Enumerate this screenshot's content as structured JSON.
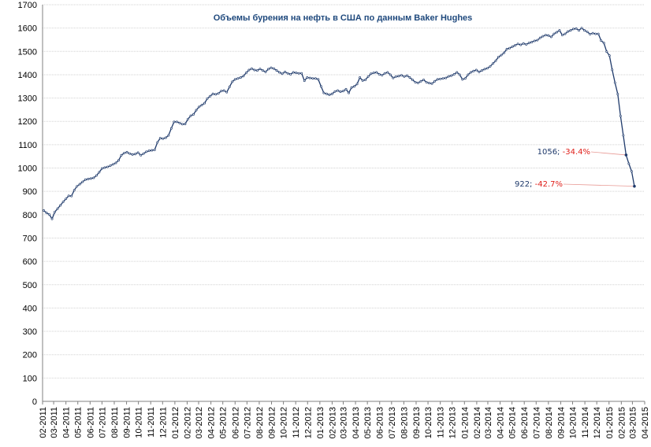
{
  "chart_data": {
    "type": "line",
    "title": "Объемы бурения на нефть в США по данным Baker Hughes",
    "xlabel": "",
    "ylabel": "",
    "ylim": [
      0,
      1700
    ],
    "y_ticks": [
      0,
      100,
      200,
      300,
      400,
      500,
      600,
      700,
      800,
      900,
      1000,
      1100,
      1200,
      1300,
      1400,
      1500,
      1600,
      1700
    ],
    "x_range": [
      "2011-02-01",
      "2015-04-01"
    ],
    "x_ticks": [
      "02-2011",
      "03-2011",
      "04-2011",
      "05-2011",
      "06-2011",
      "07-2011",
      "08-2011",
      "09-2011",
      "10-2011",
      "11-2011",
      "12-2011",
      "01-2012",
      "02-2012",
      "03-2012",
      "04-2012",
      "05-2012",
      "06-2012",
      "07-2012",
      "08-2012",
      "09-2012",
      "10-2012",
      "11-2012",
      "12-2012",
      "01-2013",
      "02-2013",
      "03-2013",
      "04-2013",
      "05-2013",
      "06-2013",
      "07-2013",
      "08-2013",
      "09-2013",
      "10-2013",
      "11-2013",
      "12-2013",
      "01-2014",
      "02-2014",
      "03-2014",
      "04-2014",
      "05-2014",
      "06-2014",
      "07-2014",
      "08-2014",
      "09-2014",
      "10-2014",
      "11-2014",
      "12-2014",
      "01-2015",
      "02-2015",
      "03-2015",
      "04-2015"
    ],
    "grid": "horizontal",
    "legend": "none",
    "series_color": "#1f3a6b",
    "series": [
      {
        "name": "",
        "points": [
          [
            "2011-02-04",
            818
          ],
          [
            "2011-02-11",
            808
          ],
          [
            "2011-02-18",
            801
          ],
          [
            "2011-02-25",
            782
          ],
          [
            "2011-03-04",
            812
          ],
          [
            "2011-03-11",
            826
          ],
          [
            "2011-03-18",
            840
          ],
          [
            "2011-03-25",
            855
          ],
          [
            "2011-04-01",
            868
          ],
          [
            "2011-04-08",
            881
          ],
          [
            "2011-04-15",
            880
          ],
          [
            "2011-04-22",
            905
          ],
          [
            "2011-04-29",
            922
          ],
          [
            "2011-05-06",
            931
          ],
          [
            "2011-05-13",
            941
          ],
          [
            "2011-05-20",
            950
          ],
          [
            "2011-05-27",
            953
          ],
          [
            "2011-06-03",
            955
          ],
          [
            "2011-06-10",
            958
          ],
          [
            "2011-06-17",
            968
          ],
          [
            "2011-06-24",
            982
          ],
          [
            "2011-07-01",
            998
          ],
          [
            "2011-07-08",
            1002
          ],
          [
            "2011-07-15",
            1005
          ],
          [
            "2011-07-22",
            1010
          ],
          [
            "2011-07-29",
            1016
          ],
          [
            "2011-08-05",
            1022
          ],
          [
            "2011-08-12",
            1033
          ],
          [
            "2011-08-19",
            1055
          ],
          [
            "2011-08-26",
            1064
          ],
          [
            "2011-09-02",
            1068
          ],
          [
            "2011-09-09",
            1062
          ],
          [
            "2011-09-16",
            1058
          ],
          [
            "2011-09-23",
            1060
          ],
          [
            "2011-09-30",
            1066
          ],
          [
            "2011-10-07",
            1055
          ],
          [
            "2011-10-14",
            1062
          ],
          [
            "2011-10-21",
            1070
          ],
          [
            "2011-10-28",
            1074
          ],
          [
            "2011-11-04",
            1076
          ],
          [
            "2011-11-11",
            1078
          ],
          [
            "2011-11-18",
            1110
          ],
          [
            "2011-11-25",
            1128
          ],
          [
            "2011-12-02",
            1126
          ],
          [
            "2011-12-09",
            1130
          ],
          [
            "2011-12-16",
            1140
          ],
          [
            "2011-12-23",
            1170
          ],
          [
            "2011-12-30",
            1198
          ],
          [
            "2012-01-06",
            1198
          ],
          [
            "2012-01-13",
            1193
          ],
          [
            "2012-01-20",
            1188
          ],
          [
            "2012-01-27",
            1189
          ],
          [
            "2012-02-03",
            1210
          ],
          [
            "2012-02-10",
            1224
          ],
          [
            "2012-02-17",
            1230
          ],
          [
            "2012-02-24",
            1248
          ],
          [
            "2012-03-02",
            1262
          ],
          [
            "2012-03-09",
            1270
          ],
          [
            "2012-03-16",
            1278
          ],
          [
            "2012-03-23",
            1298
          ],
          [
            "2012-03-30",
            1308
          ],
          [
            "2012-04-06",
            1318
          ],
          [
            "2012-04-13",
            1316
          ],
          [
            "2012-04-20",
            1320
          ],
          [
            "2012-04-27",
            1330
          ],
          [
            "2012-05-04",
            1332
          ],
          [
            "2012-05-11",
            1325
          ],
          [
            "2012-05-18",
            1348
          ],
          [
            "2012-05-25",
            1370
          ],
          [
            "2012-06-01",
            1380
          ],
          [
            "2012-06-08",
            1384
          ],
          [
            "2012-06-15",
            1388
          ],
          [
            "2012-06-22",
            1394
          ],
          [
            "2012-06-29",
            1408
          ],
          [
            "2012-07-06",
            1420
          ],
          [
            "2012-07-13",
            1426
          ],
          [
            "2012-07-20",
            1420
          ],
          [
            "2012-07-27",
            1418
          ],
          [
            "2012-08-03",
            1425
          ],
          [
            "2012-08-10",
            1418
          ],
          [
            "2012-08-17",
            1412
          ],
          [
            "2012-08-24",
            1424
          ],
          [
            "2012-08-31",
            1430
          ],
          [
            "2012-09-07",
            1426
          ],
          [
            "2012-09-14",
            1418
          ],
          [
            "2012-09-21",
            1410
          ],
          [
            "2012-09-28",
            1404
          ],
          [
            "2012-10-05",
            1412
          ],
          [
            "2012-10-12",
            1406
          ],
          [
            "2012-10-19",
            1402
          ],
          [
            "2012-10-26",
            1410
          ],
          [
            "2012-11-02",
            1408
          ],
          [
            "2012-11-09",
            1406
          ],
          [
            "2012-11-16",
            1406
          ],
          [
            "2012-11-23",
            1374
          ],
          [
            "2012-11-30",
            1388
          ],
          [
            "2012-12-07",
            1386
          ],
          [
            "2012-12-14",
            1384
          ],
          [
            "2012-12-21",
            1384
          ],
          [
            "2012-12-28",
            1380
          ],
          [
            "2013-01-04",
            1350
          ],
          [
            "2013-01-11",
            1322
          ],
          [
            "2013-01-18",
            1318
          ],
          [
            "2013-01-25",
            1314
          ],
          [
            "2013-02-01",
            1318
          ],
          [
            "2013-02-08",
            1328
          ],
          [
            "2013-02-15",
            1332
          ],
          [
            "2013-02-22",
            1327
          ],
          [
            "2013-03-01",
            1330
          ],
          [
            "2013-03-08",
            1338
          ],
          [
            "2013-03-15",
            1322
          ],
          [
            "2013-03-22",
            1345
          ],
          [
            "2013-03-29",
            1350
          ],
          [
            "2013-04-05",
            1360
          ],
          [
            "2013-04-12",
            1388
          ],
          [
            "2013-04-19",
            1375
          ],
          [
            "2013-04-26",
            1378
          ],
          [
            "2013-05-03",
            1392
          ],
          [
            "2013-05-10",
            1404
          ],
          [
            "2013-05-17",
            1408
          ],
          [
            "2013-05-24",
            1410
          ],
          [
            "2013-05-31",
            1402
          ],
          [
            "2013-06-07",
            1398
          ],
          [
            "2013-06-14",
            1406
          ],
          [
            "2013-06-21",
            1410
          ],
          [
            "2013-06-28",
            1400
          ],
          [
            "2013-07-05",
            1386
          ],
          [
            "2013-07-12",
            1392
          ],
          [
            "2013-07-19",
            1394
          ],
          [
            "2013-07-26",
            1398
          ],
          [
            "2013-08-02",
            1392
          ],
          [
            "2013-08-09",
            1396
          ],
          [
            "2013-08-16",
            1388
          ],
          [
            "2013-08-23",
            1378
          ],
          [
            "2013-08-30",
            1368
          ],
          [
            "2013-09-06",
            1365
          ],
          [
            "2013-09-13",
            1372
          ],
          [
            "2013-09-20",
            1378
          ],
          [
            "2013-09-27",
            1368
          ],
          [
            "2013-10-04",
            1364
          ],
          [
            "2013-10-11",
            1362
          ],
          [
            "2013-10-18",
            1372
          ],
          [
            "2013-10-25",
            1380
          ],
          [
            "2013-11-01",
            1382
          ],
          [
            "2013-11-08",
            1384
          ],
          [
            "2013-11-15",
            1386
          ],
          [
            "2013-11-22",
            1393
          ],
          [
            "2013-11-29",
            1396
          ],
          [
            "2013-12-06",
            1402
          ],
          [
            "2013-12-13",
            1410
          ],
          [
            "2013-12-20",
            1400
          ],
          [
            "2013-12-27",
            1380
          ],
          [
            "2014-01-03",
            1384
          ],
          [
            "2014-01-10",
            1400
          ],
          [
            "2014-01-17",
            1410
          ],
          [
            "2014-01-24",
            1416
          ],
          [
            "2014-01-31",
            1420
          ],
          [
            "2014-02-07",
            1412
          ],
          [
            "2014-02-14",
            1418
          ],
          [
            "2014-02-21",
            1424
          ],
          [
            "2014-02-28",
            1428
          ],
          [
            "2014-03-07",
            1436
          ],
          [
            "2014-03-14",
            1448
          ],
          [
            "2014-03-21",
            1460
          ],
          [
            "2014-03-28",
            1476
          ],
          [
            "2014-04-04",
            1484
          ],
          [
            "2014-04-11",
            1494
          ],
          [
            "2014-04-18",
            1510
          ],
          [
            "2014-04-25",
            1514
          ],
          [
            "2014-05-02",
            1520
          ],
          [
            "2014-05-09",
            1526
          ],
          [
            "2014-05-16",
            1532
          ],
          [
            "2014-05-23",
            1528
          ],
          [
            "2014-05-30",
            1534
          ],
          [
            "2014-06-06",
            1530
          ],
          [
            "2014-06-13",
            1536
          ],
          [
            "2014-06-20",
            1540
          ],
          [
            "2014-06-27",
            1545
          ],
          [
            "2014-07-04",
            1548
          ],
          [
            "2014-07-11",
            1558
          ],
          [
            "2014-07-18",
            1565
          ],
          [
            "2014-07-25",
            1570
          ],
          [
            "2014-08-01",
            1568
          ],
          [
            "2014-08-08",
            1562
          ],
          [
            "2014-08-15",
            1575
          ],
          [
            "2014-08-22",
            1582
          ],
          [
            "2014-08-29",
            1590
          ],
          [
            "2014-09-05",
            1570
          ],
          [
            "2014-09-12",
            1575
          ],
          [
            "2014-09-19",
            1585
          ],
          [
            "2014-09-26",
            1590
          ],
          [
            "2014-10-03",
            1596
          ],
          [
            "2014-10-10",
            1598
          ],
          [
            "2014-10-17",
            1590
          ],
          [
            "2014-10-24",
            1600
          ],
          [
            "2014-10-31",
            1590
          ],
          [
            "2014-11-07",
            1584
          ],
          [
            "2014-11-14",
            1574
          ],
          [
            "2014-11-21",
            1578
          ],
          [
            "2014-11-28",
            1575
          ],
          [
            "2014-12-05",
            1575
          ],
          [
            "2014-12-12",
            1546
          ],
          [
            "2014-12-19",
            1536
          ],
          [
            "2014-12-26",
            1499
          ],
          [
            "2015-01-02",
            1482
          ],
          [
            "2015-01-09",
            1421
          ],
          [
            "2015-01-16",
            1366
          ],
          [
            "2015-01-23",
            1317
          ],
          [
            "2015-01-30",
            1223
          ],
          [
            "2015-02-06",
            1140
          ],
          [
            "2015-02-13",
            1056
          ],
          [
            "2015-02-20",
            1019
          ],
          [
            "2015-02-27",
            986
          ],
          [
            "2015-03-06",
            922
          ]
        ]
      }
    ],
    "annotations": [
      {
        "value": "1056",
        "separator": ";",
        "change": "-34.4%",
        "x": "2015-02-13",
        "y": 1056
      },
      {
        "value": "922",
        "separator": ";",
        "change": "-42.7%",
        "x": "2015-03-06",
        "y": 922
      }
    ]
  }
}
